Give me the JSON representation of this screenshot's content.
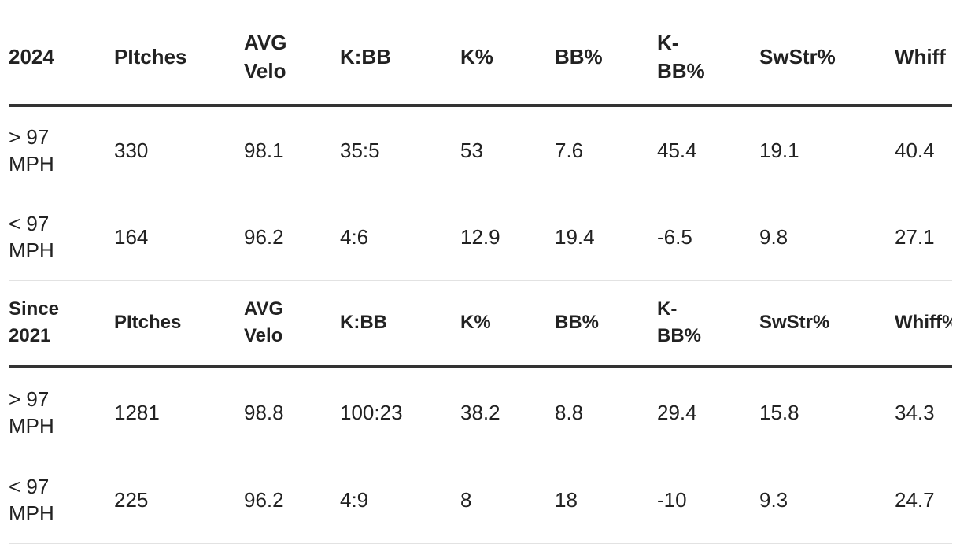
{
  "sections": [
    {
      "headers": [
        "2024",
        "PItches",
        "AVG Velo",
        "K:BB",
        "K%",
        "BB%",
        "K-BB%",
        "SwStr%",
        "Whiff"
      ],
      "rows": [
        [
          "> 97 MPH",
          "330",
          "98.1",
          "35:5",
          "53",
          "7.6",
          "45.4",
          "19.1",
          "40.4"
        ],
        [
          "< 97 MPH",
          "164",
          "96.2",
          "4:6",
          "12.9",
          "19.4",
          "-6.5",
          "9.8",
          "27.1"
        ]
      ]
    },
    {
      "headers": [
        "Since 2021",
        "PItches",
        "AVG Velo",
        "K:BB",
        "K%",
        "BB%",
        "K-BB%",
        "SwStr%",
        "Whiff%"
      ],
      "rows": [
        [
          "> 97 MPH",
          "1281",
          "98.8",
          "100:23",
          "38.2",
          "8.8",
          "29.4",
          "15.8",
          "34.3"
        ],
        [
          "< 97 MPH",
          "225",
          "96.2",
          "4:9",
          "8",
          "18",
          "-10",
          "9.3",
          "24.7"
        ]
      ]
    }
  ]
}
